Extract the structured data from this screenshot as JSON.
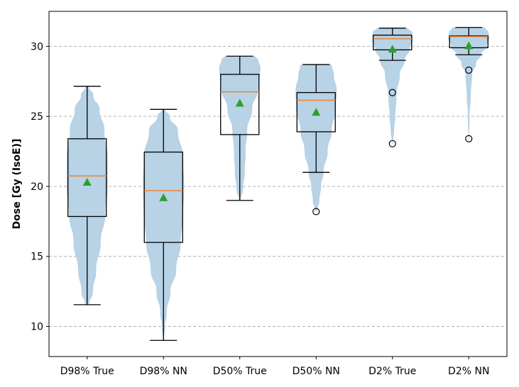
{
  "chart_data": {
    "type": "violin-box",
    "title": "",
    "xlabel": "",
    "ylabel": "Dose [Gy (IsoE)]",
    "ylim": [
      7.85,
      32.5
    ],
    "yticks": [
      10,
      15,
      20,
      25,
      30
    ],
    "grid": "horizontal-dashed",
    "categories": [
      "D98% True",
      "D98% NN",
      "D50% True",
      "D50% NN",
      "D2% True",
      "D2% NN"
    ],
    "series": [
      {
        "name": "D98% True",
        "min": 11.55,
        "q1": 17.85,
        "median": 20.75,
        "q3": 23.4,
        "max": 27.15,
        "mean": 20.3,
        "outliers": [],
        "density": [
          [
            11.55,
            0.05
          ],
          [
            12.5,
            0.14
          ],
          [
            14,
            0.22
          ],
          [
            16,
            0.33
          ],
          [
            18,
            0.44
          ],
          [
            20,
            0.5
          ],
          [
            22,
            0.5
          ],
          [
            24,
            0.42
          ],
          [
            25.5,
            0.3
          ],
          [
            26.5,
            0.15
          ],
          [
            27.15,
            0.04
          ]
        ]
      },
      {
        "name": "D98% NN",
        "min": 9.0,
        "q1": 16.0,
        "median": 19.7,
        "q3": 22.45,
        "max": 25.5,
        "mean": 19.2,
        "outliers": [],
        "density": [
          [
            9.0,
            0.01
          ],
          [
            10,
            0.04
          ],
          [
            11,
            0.08
          ],
          [
            12.5,
            0.17
          ],
          [
            14,
            0.31
          ],
          [
            16,
            0.42
          ],
          [
            18,
            0.48
          ],
          [
            20,
            0.5
          ],
          [
            22,
            0.48
          ],
          [
            24,
            0.35
          ],
          [
            25,
            0.15
          ],
          [
            25.5,
            0.04
          ]
        ]
      },
      {
        "name": "D50% True",
        "min": 19.0,
        "q1": 23.7,
        "median": 26.75,
        "q3": 28.0,
        "max": 29.3,
        "mean": 25.95,
        "outliers": [],
        "density": [
          [
            19,
            0.02
          ],
          [
            19.8,
            0.08
          ],
          [
            21,
            0.12
          ],
          [
            22.5,
            0.14
          ],
          [
            24,
            0.18
          ],
          [
            25.5,
            0.3
          ],
          [
            27,
            0.45
          ],
          [
            28.5,
            0.5
          ],
          [
            29,
            0.45
          ],
          [
            29.3,
            0.38
          ]
        ]
      },
      {
        "name": "D50% NN",
        "min": 21.0,
        "q1": 23.9,
        "median": 26.15,
        "q3": 26.7,
        "max": 28.7,
        "mean": 25.3,
        "outliers": [
          18.2
        ],
        "density": [
          [
            18.2,
            0.02
          ],
          [
            19,
            0.08
          ],
          [
            20,
            0.12
          ],
          [
            21,
            0.18
          ],
          [
            22.5,
            0.28
          ],
          [
            24,
            0.38
          ],
          [
            25.5,
            0.48
          ],
          [
            26.8,
            0.5
          ],
          [
            28,
            0.43
          ],
          [
            28.7,
            0.38
          ]
        ]
      },
      {
        "name": "D2% True",
        "min": 29.0,
        "q1": 29.75,
        "median": 30.55,
        "q3": 30.8,
        "max": 31.3,
        "mean": 29.8,
        "outliers": [
          26.7,
          23.05
        ],
        "density": [
          [
            23.05,
            0.01
          ],
          [
            24,
            0.04
          ],
          [
            25,
            0.07
          ],
          [
            26.5,
            0.1
          ],
          [
            28,
            0.18
          ],
          [
            29,
            0.3
          ],
          [
            29.8,
            0.42
          ],
          [
            30.5,
            0.5
          ],
          [
            31,
            0.48
          ],
          [
            31.3,
            0.38
          ]
        ]
      },
      {
        "name": "D2% NN",
        "min": 29.4,
        "q1": 29.9,
        "median": 30.7,
        "q3": 30.75,
        "max": 31.35,
        "mean": 30.05,
        "outliers": [
          28.3,
          23.4
        ],
        "density": [
          [
            23.4,
            0.01
          ],
          [
            25,
            0.02
          ],
          [
            26.5,
            0.05
          ],
          [
            28,
            0.08
          ],
          [
            28.8,
            0.18
          ],
          [
            29.4,
            0.3
          ],
          [
            30,
            0.43
          ],
          [
            30.6,
            0.5
          ],
          [
            31,
            0.48
          ],
          [
            31.35,
            0.4
          ]
        ]
      }
    ],
    "colors": {
      "violin": "#b8d2e6",
      "box": "#000000",
      "median": "#e8873a",
      "mean": "#2ca02c",
      "grid": "#b0b0b0",
      "outlier": "#000000"
    }
  }
}
